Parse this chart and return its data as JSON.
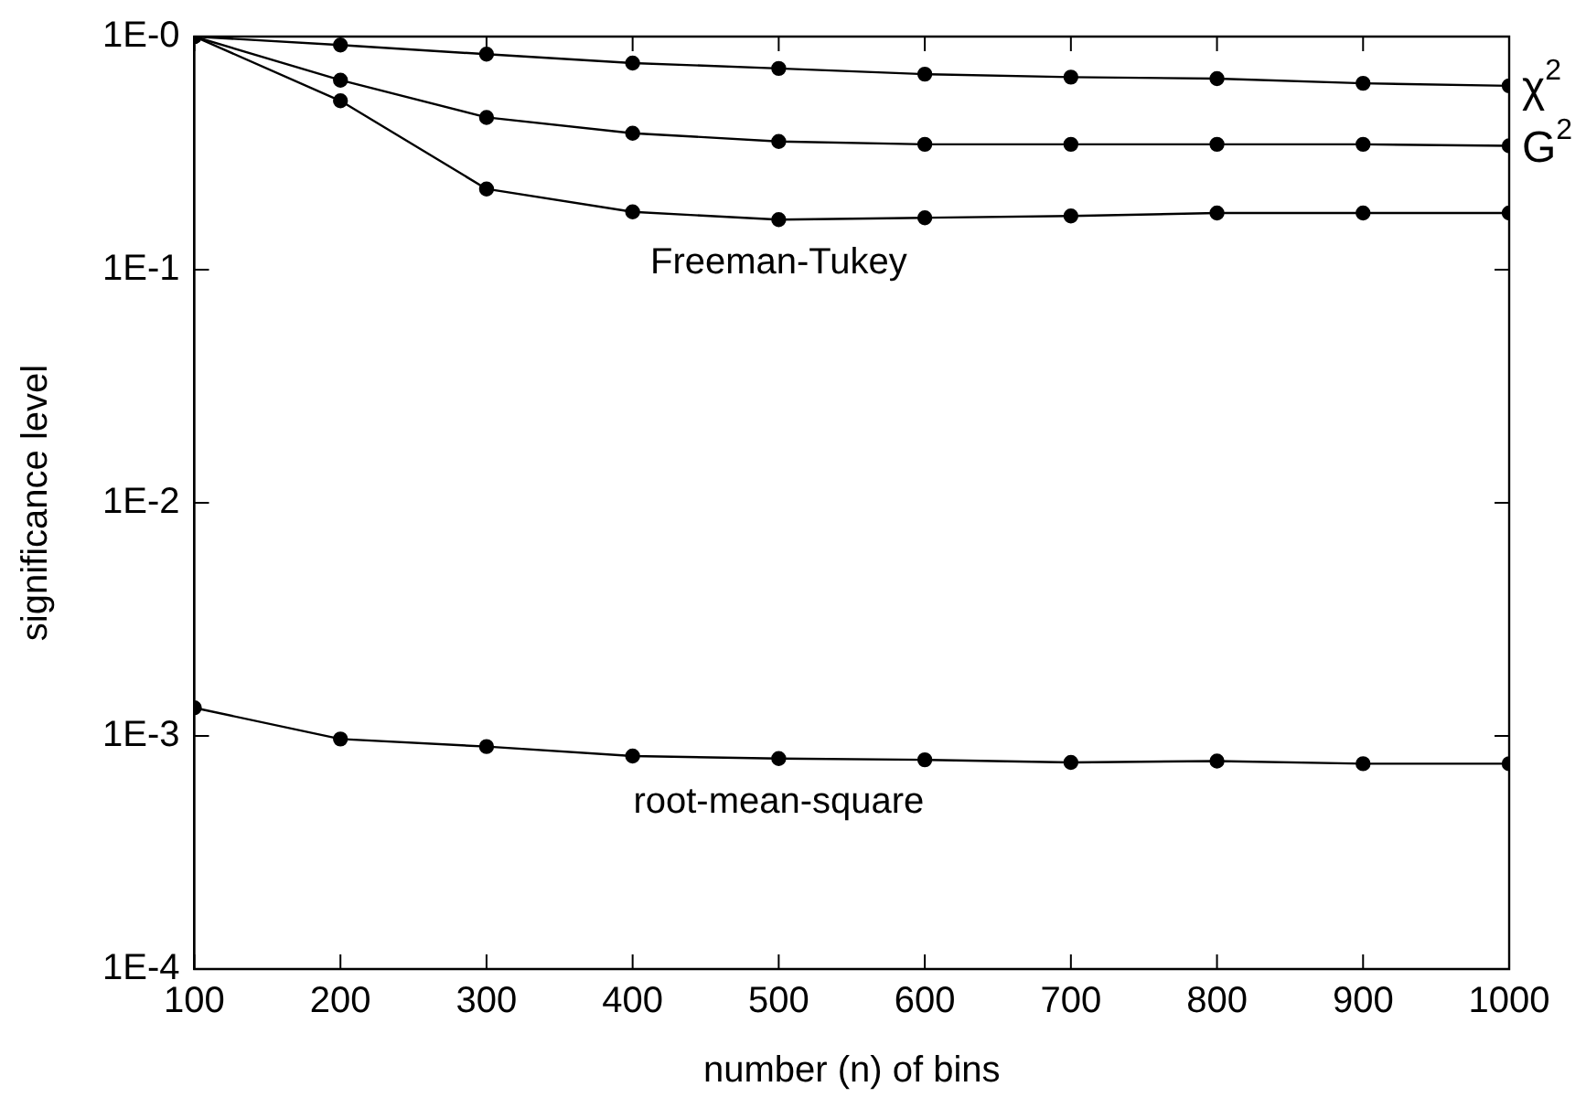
{
  "chart_data": {
    "type": "line",
    "xlabel": "number (n) of bins",
    "ylabel": "significance level",
    "log": "y",
    "grid": false,
    "legend": false,
    "marker": "circle",
    "line_style": "solid",
    "x": [
      100,
      200,
      300,
      400,
      500,
      600,
      700,
      800,
      900,
      1000
    ],
    "xlim": [
      100,
      1000
    ],
    "xticks": [
      100,
      200,
      300,
      400,
      500,
      600,
      700,
      800,
      900,
      1000
    ],
    "ylim": [
      0.0001,
      1
    ],
    "yticks": [
      {
        "value": 0.0001,
        "label": "1E-4"
      },
      {
        "value": 0.001,
        "label": "1E-3"
      },
      {
        "value": 0.01,
        "label": "1E-2"
      },
      {
        "value": 0.1,
        "label": "1E-1"
      },
      {
        "value": 1,
        "label": "1E-0"
      }
    ],
    "series": [
      {
        "name": "χ$^{2}$",
        "color": "#000000",
        "values": [
          1,
          0.92,
          0.84,
          0.77,
          0.73,
          0.69,
          0.67,
          0.66,
          0.63,
          0.615
        ]
      },
      {
        "name": "G$^{2}$",
        "color": "#000000",
        "values": [
          1,
          0.65,
          0.45,
          0.385,
          0.355,
          0.345,
          0.345,
          0.345,
          0.345,
          0.34
        ]
      },
      {
        "name": "Freeman-Tukey",
        "color": "#000000",
        "values": [
          1,
          0.53,
          0.222,
          0.177,
          0.164,
          0.167,
          0.17,
          0.175,
          0.175,
          0.175
        ]
      },
      {
        "name": "root-mean-square",
        "color": "#000000",
        "values": [
          0.00132,
          0.00097,
          0.0009,
          0.00082,
          0.0008,
          0.00079,
          0.00077,
          0.00078,
          0.00076,
          0.00076
        ]
      }
    ]
  }
}
